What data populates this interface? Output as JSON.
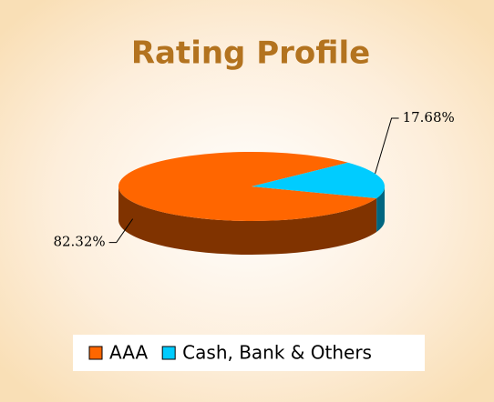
{
  "chart_data": {
    "type": "pie",
    "title": "Rating Profile",
    "categories": [
      "AAA",
      "Cash, Bank & Others"
    ],
    "values": [
      82.32,
      17.68
    ],
    "value_labels": [
      "82.32%",
      "17.68%"
    ],
    "colors": [
      "#ff6600",
      "#00ccff"
    ],
    "legend": "bottom"
  }
}
